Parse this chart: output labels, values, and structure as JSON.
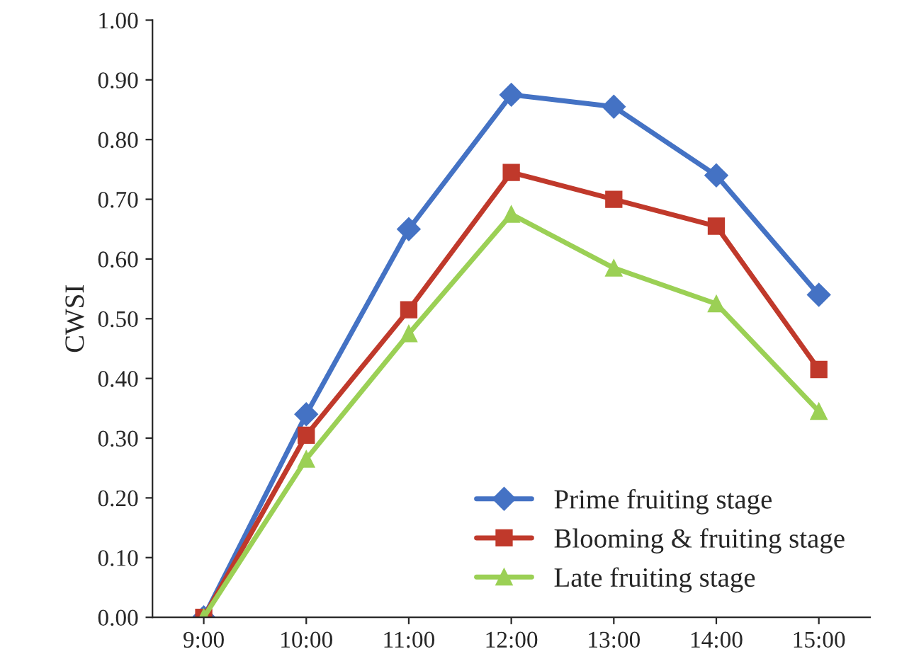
{
  "chart_data": {
    "type": "line",
    "ylabel": "CWSI",
    "categories": [
      "9:00",
      "10:00",
      "11:00",
      "12:00",
      "13:00",
      "14:00",
      "15:00"
    ],
    "series": [
      {
        "name": "Prime fruiting stage",
        "color": "#4472c4",
        "marker": "diamond",
        "values": [
          0,
          0.34,
          0.65,
          0.875,
          0.855,
          0.74,
          0.54
        ]
      },
      {
        "name": "Blooming & fruiting stage",
        "color": "#c0392b",
        "marker": "square",
        "values": [
          0,
          0.305,
          0.515,
          0.745,
          0.7,
          0.655,
          0.415
        ]
      },
      {
        "name": "Late fruiting stage",
        "color": "#9bd055",
        "marker": "triangle",
        "values": [
          0,
          0.265,
          0.475,
          0.675,
          0.585,
          0.525,
          0.345
        ]
      }
    ],
    "ylim": [
      0,
      1
    ],
    "yticks": [
      {
        "value": 0,
        "label": "0.00"
      },
      {
        "value": 0.1,
        "label": "0.10"
      },
      {
        "value": 0.2,
        "label": "0.20"
      },
      {
        "value": 0.3,
        "label": "0.30"
      },
      {
        "value": 0.4,
        "label": "0.40"
      },
      {
        "value": 0.5,
        "label": "0.50"
      },
      {
        "value": 0.6,
        "label": "0.60"
      },
      {
        "value": 0.7,
        "label": "0.70"
      },
      {
        "value": 0.8,
        "label": "0.80"
      },
      {
        "value": 0.9,
        "label": "0.90"
      },
      {
        "value": 1,
        "label": "1.00"
      }
    ],
    "grid": false,
    "legend": "bottom right",
    "line_style": "solid"
  }
}
